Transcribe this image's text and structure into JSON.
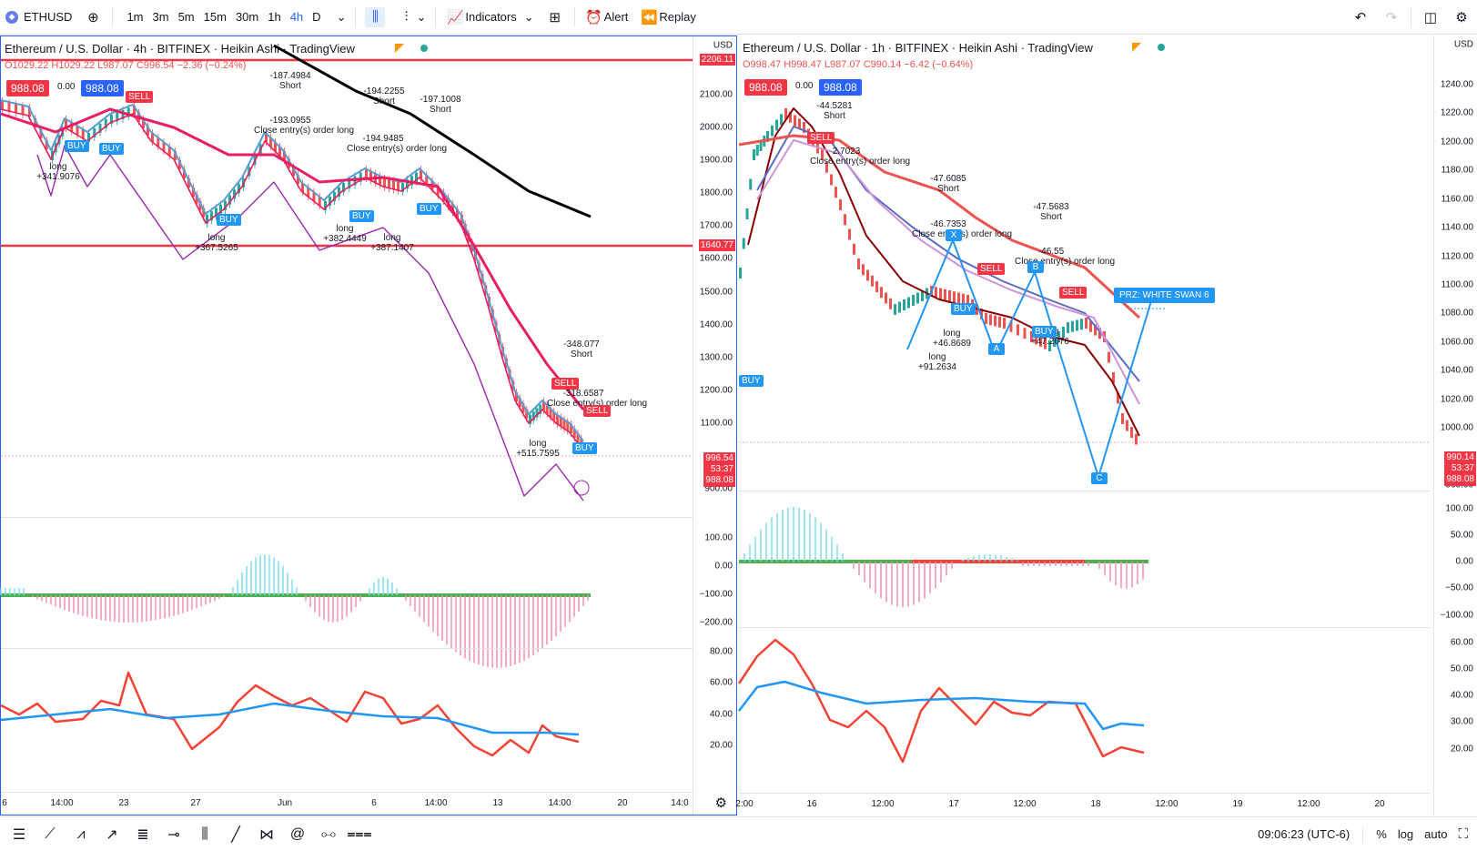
{
  "toolbar": {
    "symbol": "ETHUSD",
    "intervals": [
      "1m",
      "3m",
      "5m",
      "15m",
      "30m",
      "1h",
      "4h",
      "D"
    ],
    "active_interval": "4h",
    "indicators_label": "Indicators",
    "alert_label": "Alert",
    "replay_label": "Replay"
  },
  "left_chart": {
    "title": "Ethereum / U.S. Dollar · 4h · BITFINEX · Heikin Ashi · TradingView",
    "ohlc": "O1029.22 H1029.22 L987.07 C996.54 −2.36 (−0.24%)",
    "bid": "988.08",
    "spread": "0.00",
    "ask": "988.08",
    "currency": "USD",
    "price_ticks": [
      "2100.00",
      "2000.00",
      "1900.00",
      "1800.00",
      "1700.00",
      "1600.00",
      "1500.00",
      "1400.00",
      "1300.00",
      "1200.00",
      "1100.00",
      "900.00"
    ],
    "price_tick_values": [
      2100,
      2000,
      1900,
      1800,
      1700,
      1600,
      1500,
      1400,
      1300,
      1200,
      1100,
      900
    ],
    "hline_top": "2206.11",
    "hline_mid": "1640.77",
    "last_price": "996.54",
    "countdown": "53:37",
    "last_price2": "988.08",
    "osc_ticks": [
      "100.00",
      "0.00",
      "−100.00",
      "−200.00"
    ],
    "rsi_ticks": [
      "80.00",
      "60.00",
      "40.00",
      "20.00"
    ],
    "time_labels": [
      "6",
      "14:00",
      "23",
      "27",
      "Jun",
      "6",
      "14:00",
      "13",
      "14:00",
      "20",
      "14:0"
    ],
    "annotations": [
      {
        "text": "-187.4984\nShort",
        "cls": "a1"
      },
      {
        "text": "-193.0955\nClose entry(s) order long",
        "cls": "a2"
      },
      {
        "text": "-194.2255\nShort",
        "cls": "a3"
      },
      {
        "text": "-194.9485\nClose entry(s) order long",
        "cls": "a4"
      },
      {
        "text": "long\n+341.9076",
        "cls": "a5"
      },
      {
        "text": "long\n+367.5265",
        "cls": "a6"
      },
      {
        "text": "long\n+382.4449",
        "cls": "a7"
      },
      {
        "text": "long\n+387.1407",
        "cls": "a8"
      },
      {
        "text": "-348.077\nShort",
        "cls": "a9"
      },
      {
        "text": "-318.6587\nClose entry(s) order long",
        "cls": "a10"
      },
      {
        "text": "long\n+515.7595",
        "cls": "a11"
      },
      {
        "text": "-197.1008\nShort",
        "cls": "a12"
      }
    ]
  },
  "right_chart": {
    "title": "Ethereum / U.S. Dollar · 1h · BITFINEX · Heikin Ashi · TradingView",
    "ohlc": "O998.47 H998.47 L987.07 C990.14 −6.42 (−0.64%)",
    "bid": "988.08",
    "spread": "0.00",
    "ask": "988.08",
    "currency": "USD",
    "price_ticks": [
      "1240.00",
      "1220.00",
      "1200.00",
      "1180.00",
      "1160.00",
      "1140.00",
      "1120.00",
      "1100.00",
      "1080.00",
      "1060.00",
      "1040.00",
      "1020.00",
      "1000.00",
      "960.00"
    ],
    "price_tick_values": [
      1240,
      1220,
      1200,
      1180,
      1160,
      1140,
      1120,
      1100,
      1080,
      1060,
      1040,
      1020,
      1000,
      960
    ],
    "last_price": "990.14",
    "countdown": "53:37",
    "last_price2": "988.08",
    "osc_ticks": [
      "100.00",
      "50.00",
      "0.00",
      "−50.00",
      "−100.00"
    ],
    "rsi_ticks": [
      "60.00",
      "50.00",
      "40.00",
      "30.00",
      "20.00"
    ],
    "time_labels": [
      "2:00",
      "16",
      "12:00",
      "17",
      "12:00",
      "18",
      "12:00",
      "19",
      "12:00",
      "20"
    ],
    "prz_label": "PRZ: WHITE SWAN 6",
    "points": [
      "X",
      "A",
      "B",
      "C"
    ],
    "annotations": [
      {
        "text": "-44.5281\nShort"
      },
      {
        "text": "2.7023\nClose entry(s) order long"
      },
      {
        "text": "-47.6085\nShort"
      },
      {
        "text": "-46.7353\nClose entry(s) order long"
      },
      {
        "text": "-47.5683\nShort"
      },
      {
        "text": "-46.55\nClose entry(s) order long"
      },
      {
        "text": "long\n+46.8689"
      },
      {
        "text": "long\n+91.2634"
      },
      {
        "text": "long\n+47.2676"
      }
    ]
  },
  "statusbar": {
    "time": "09:06:23 (UTC-6)",
    "percent": "%",
    "log": "log",
    "auto": "auto"
  },
  "colors": {
    "accent": "#2962ff",
    "bull": "#26a69a",
    "bear": "#ef5350",
    "signal_red": "#f23645"
  }
}
